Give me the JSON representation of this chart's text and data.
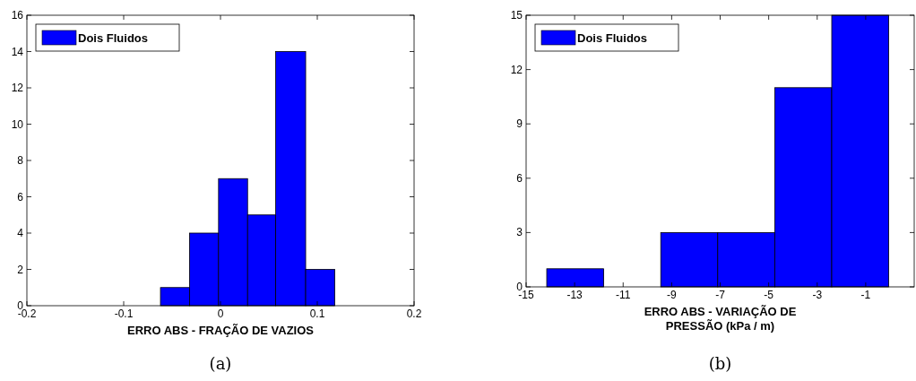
{
  "chart_data": [
    {
      "type": "histogram",
      "xlabel": "ERRO ABS - FRAÇÃO DE VAZIOS",
      "bins": [
        -0.062,
        -0.032,
        -0.002,
        0.028,
        0.057,
        0.088,
        0.118
      ],
      "series": [
        {
          "name": "Dois Fluidos",
          "color": "#0000ff",
          "values": [
            1,
            4,
            7,
            5,
            14,
            2
          ]
        }
      ],
      "xlim": [
        -0.2,
        0.2
      ],
      "xticks": [
        -0.2,
        -0.1,
        0,
        0.1,
        0.2
      ],
      "ylim": [
        0,
        16
      ],
      "yticks": [
        0,
        2,
        4,
        6,
        8,
        10,
        12,
        14,
        16
      ],
      "legend": "top left",
      "annotations": [
        "(a)"
      ]
    },
    {
      "type": "histogram",
      "xlabel": "ERRO ABS - VARIAÇÃO DE PRESSÃO (kPa / m)",
      "bins": [
        -14.15,
        -11.8,
        -9.45,
        -7.1,
        -4.75,
        -2.4,
        -0.05
      ],
      "series": [
        {
          "name": "Dois Fluidos",
          "color": "#0000ff",
          "values": [
            1,
            0,
            3,
            3,
            11,
            15
          ]
        }
      ],
      "xlim": [
        -15,
        1
      ],
      "xticks": [
        -15,
        -13,
        -11,
        -9,
        -7,
        -5,
        -3,
        -1
      ],
      "ylim": [
        0,
        15
      ],
      "yticks": [
        0,
        3,
        6,
        9,
        12,
        15
      ],
      "legend": "top left",
      "annotations": [
        "(b)"
      ]
    }
  ]
}
